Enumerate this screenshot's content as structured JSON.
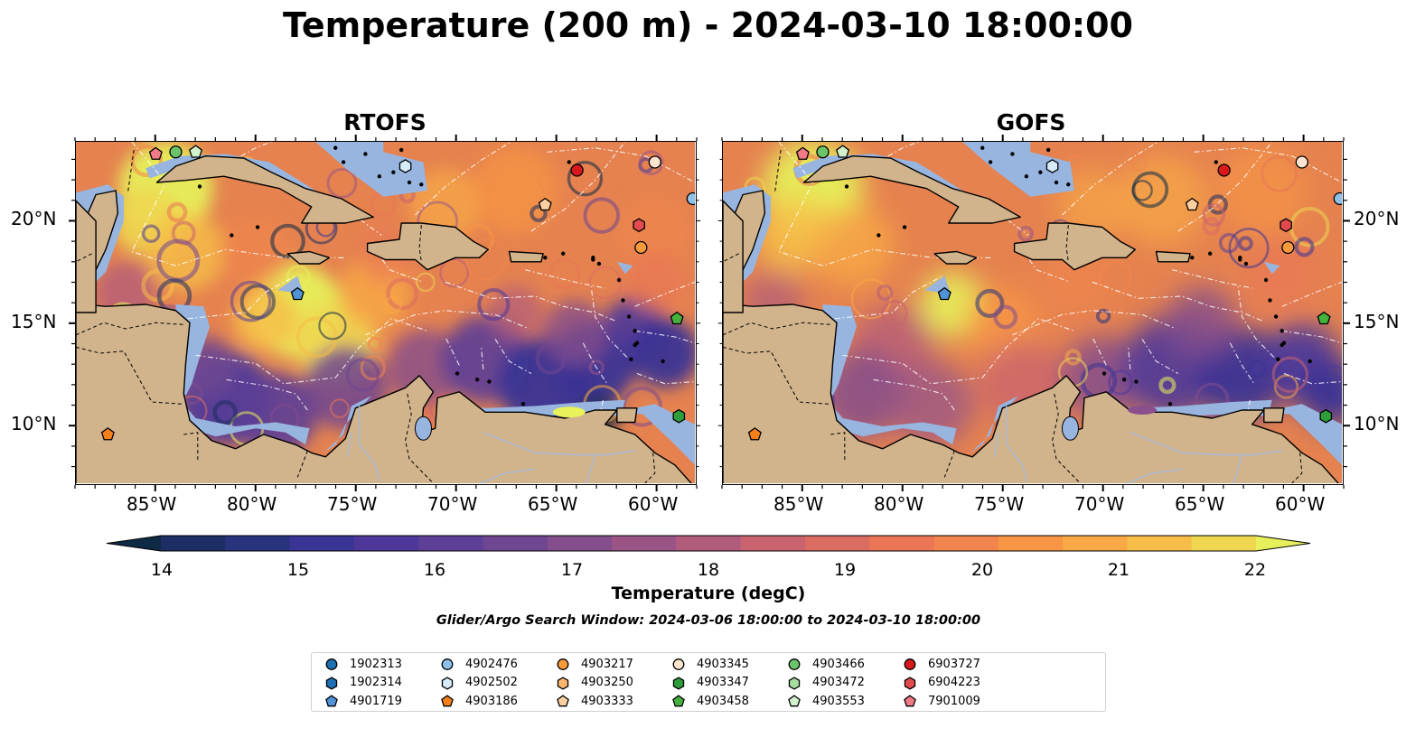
{
  "title": "Temperature (200 m) - 2024-03-10 18:00:00",
  "panels": [
    {
      "id": "rtofs",
      "title": "RTOFS"
    },
    {
      "id": "gofs",
      "title": "GOFS"
    }
  ],
  "lon_ticks": [
    "85°W",
    "80°W",
    "75°W",
    "70°W",
    "65°W",
    "60°W"
  ],
  "lat_ticks": [
    "20°N",
    "15°N",
    "10°N"
  ],
  "colorbar": {
    "ticks": [
      "14",
      "15",
      "16",
      "17",
      "18",
      "19",
      "20",
      "21",
      "22"
    ],
    "label": "Temperature (degC)",
    "colors": [
      "#0f2a45",
      "#1c2e63",
      "#28327d",
      "#3a3495",
      "#4d3899",
      "#5d3f96",
      "#6f4691",
      "#844d8c",
      "#9a5586",
      "#b15c7c",
      "#c8636f",
      "#db6c62",
      "#ea7656",
      "#f2854d",
      "#f79645",
      "#f8a946",
      "#f6be49",
      "#eed650",
      "#e6f05a"
    ]
  },
  "search_window": "Glider/Argo Search Window: 2024-03-06 18:00:00 to 2024-03-10 18:00:00",
  "legend": [
    {
      "label": "1902313",
      "shape": "circle",
      "color": "#1f6fb4"
    },
    {
      "label": "1902314",
      "shape": "hexagon",
      "color": "#1f6fb4"
    },
    {
      "label": "4901719",
      "shape": "pentagon",
      "color": "#4f92d6"
    },
    {
      "label": "4902476",
      "shape": "circle",
      "color": "#8ec0e8"
    },
    {
      "label": "4902502",
      "shape": "hexagon",
      "color": "#d6ecf8"
    },
    {
      "label": "4903186",
      "shape": "pentagon",
      "color": "#f57f1a"
    },
    {
      "label": "4903217",
      "shape": "circle",
      "color": "#f79a3a"
    },
    {
      "label": "4903250",
      "shape": "hexagon",
      "color": "#fbb56e"
    },
    {
      "label": "4903333",
      "shape": "pentagon",
      "color": "#fcd0a0"
    },
    {
      "label": "4903345",
      "shape": "circle",
      "color": "#fde4cf"
    },
    {
      "label": "4903347",
      "shape": "hexagon",
      "color": "#2e9e3a"
    },
    {
      "label": "4903458",
      "shape": "pentagon",
      "color": "#45b23d"
    },
    {
      "label": "4903466",
      "shape": "circle",
      "color": "#6cc46a"
    },
    {
      "label": "4903472",
      "shape": "hexagon",
      "color": "#a6dea0"
    },
    {
      "label": "4903553",
      "shape": "pentagon",
      "color": "#d3f1cd"
    },
    {
      "label": "6903727",
      "shape": "circle",
      "color": "#d7191c"
    },
    {
      "label": "6904223",
      "shape": "hexagon",
      "color": "#e34a4e"
    },
    {
      "label": "7901009",
      "shape": "pentagon",
      "color": "#f07a85"
    }
  ],
  "floats": [
    {
      "id": "7901009",
      "lon": -85.0,
      "lat": 23.3
    },
    {
      "id": "4903466",
      "lon": -84.0,
      "lat": 23.4
    },
    {
      "id": "4903553",
      "lon": -83.0,
      "lat": 23.4
    },
    {
      "id": "4902502",
      "lon": -72.5,
      "lat": 22.7
    },
    {
      "id": "6903727",
      "lon": -63.9,
      "lat": 22.5
    },
    {
      "id": "4903345",
      "lon": -60.0,
      "lat": 22.9
    },
    {
      "id": "4903333",
      "lon": -65.5,
      "lat": 20.8
    },
    {
      "id": "6904223",
      "lon": -60.8,
      "lat": 19.8
    },
    {
      "id": "4903217",
      "lon": -60.7,
      "lat": 18.7
    },
    {
      "id": "4901719",
      "lon": -77.9,
      "lat": 16.4
    },
    {
      "id": "4903458",
      "lon": -58.9,
      "lat": 15.2
    },
    {
      "id": "4903347",
      "lon": -58.8,
      "lat": 10.4
    },
    {
      "id": "4903186",
      "lon": -87.4,
      "lat": 9.5
    },
    {
      "id": "4902476",
      "lon": -58.1,
      "lat": 21.1
    }
  ]
}
